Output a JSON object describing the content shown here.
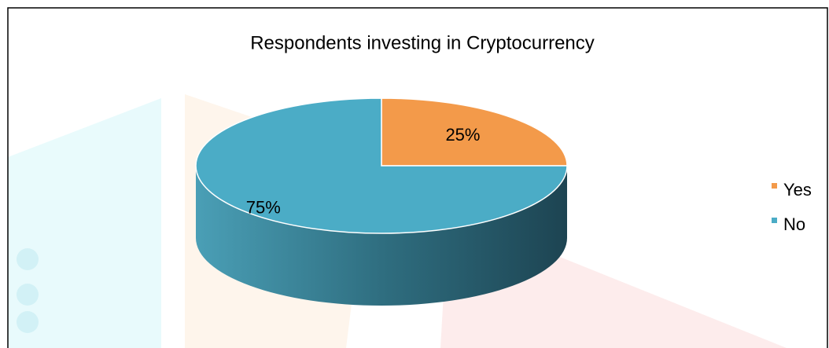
{
  "chart_data": {
    "type": "pie",
    "title": "Respondents investing in Cryptocurrency",
    "categories": [
      "Yes",
      "No"
    ],
    "values": [
      25,
      75
    ],
    "value_labels": [
      "25%",
      "75%"
    ],
    "colors": [
      "#f39a4a",
      "#4bacc6"
    ],
    "legend": "right"
  }
}
